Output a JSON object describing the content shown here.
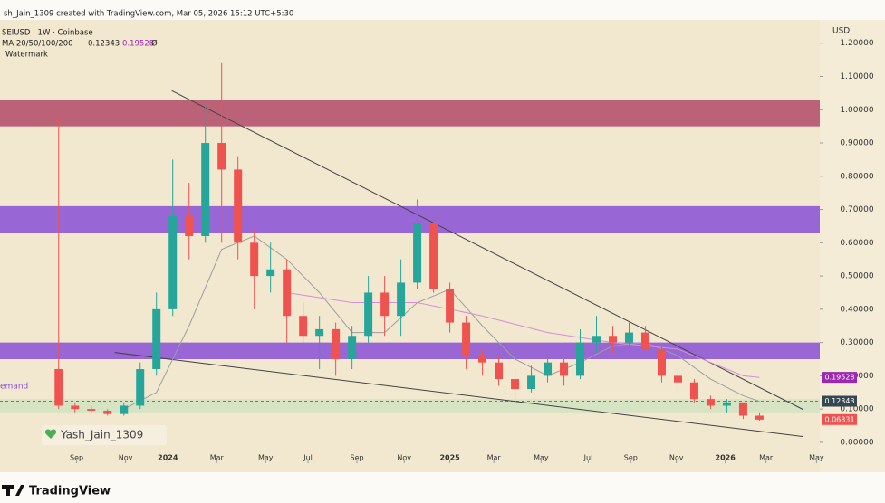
{
  "chart_data": {
    "type": "candlestick",
    "header": "sh_Jain_1309 created with TradingView.com, Mar 05, 2026 15:12 UTC+5:30",
    "symbol": "SEIUSD · 1W · Coinbase",
    "indicator": "MA 20/50/100/200",
    "indicator_values": [
      0.12343,
      0.19528
    ],
    "indicator_value_labels": [
      "0.12343",
      "0.19528"
    ],
    "indicator_suffix": "Ø",
    "watermark_label": "Watermark",
    "zone_label": "emand",
    "author": "Yash_Jain_1309",
    "brand": "TradingView",
    "currency": "USD",
    "up_color": "#26a69a",
    "down_color": "#ef5350",
    "categories": [
      null,
      null,
      null,
      null,
      null,
      null,
      null,
      null,
      null,
      null,
      null,
      null,
      null,
      null,
      null,
      null,
      null,
      null,
      null,
      null,
      null,
      null,
      null,
      null,
      null,
      null,
      null,
      null,
      null,
      null,
      null,
      null,
      null,
      null,
      null,
      null,
      null,
      null,
      null,
      null,
      null,
      null,
      null,
      null
    ],
    "candles": [
      [
        0.22,
        0.98,
        0.1,
        0.11
      ],
      [
        0.11,
        0.12,
        0.09,
        0.1
      ],
      [
        0.1,
        0.11,
        0.09,
        0.095
      ],
      [
        0.095,
        0.1,
        0.08,
        0.085
      ],
      [
        0.085,
        0.12,
        0.08,
        0.11
      ],
      [
        0.11,
        0.24,
        0.1,
        0.22
      ],
      [
        0.22,
        0.45,
        0.2,
        0.4
      ],
      [
        0.4,
        0.85,
        0.38,
        0.68
      ],
      [
        0.68,
        0.78,
        0.55,
        0.62
      ],
      [
        0.62,
        1.02,
        0.6,
        0.9
      ],
      [
        0.9,
        1.14,
        0.6,
        0.82
      ],
      [
        0.82,
        0.86,
        0.55,
        0.6
      ],
      [
        0.6,
        0.64,
        0.4,
        0.5
      ],
      [
        0.5,
        0.6,
        0.45,
        0.52
      ],
      [
        0.52,
        0.55,
        0.3,
        0.38
      ],
      [
        0.38,
        0.42,
        0.3,
        0.32
      ],
      [
        0.32,
        0.38,
        0.22,
        0.34
      ],
      [
        0.34,
        0.36,
        0.2,
        0.25
      ],
      [
        0.25,
        0.35,
        0.22,
        0.32
      ],
      [
        0.32,
        0.5,
        0.3,
        0.45
      ],
      [
        0.45,
        0.5,
        0.32,
        0.38
      ],
      [
        0.38,
        0.55,
        0.32,
        0.48
      ],
      [
        0.48,
        0.73,
        0.46,
        0.66
      ],
      [
        0.66,
        0.68,
        0.45,
        0.46
      ],
      [
        0.46,
        0.48,
        0.33,
        0.36
      ],
      [
        0.36,
        0.38,
        0.22,
        0.26
      ],
      [
        0.26,
        0.28,
        0.2,
        0.24
      ],
      [
        0.24,
        0.26,
        0.17,
        0.19
      ],
      [
        0.19,
        0.22,
        0.13,
        0.16
      ],
      [
        0.16,
        0.23,
        0.15,
        0.2
      ],
      [
        0.2,
        0.27,
        0.18,
        0.24
      ],
      [
        0.24,
        0.26,
        0.17,
        0.2
      ],
      [
        0.2,
        0.34,
        0.19,
        0.3
      ],
      [
        0.3,
        0.38,
        0.27,
        0.32
      ],
      [
        0.32,
        0.35,
        0.27,
        0.3
      ],
      [
        0.3,
        0.36,
        0.28,
        0.33
      ],
      [
        0.33,
        0.35,
        0.27,
        0.28
      ],
      [
        0.28,
        0.29,
        0.18,
        0.2
      ],
      [
        0.2,
        0.22,
        0.15,
        0.18
      ],
      [
        0.18,
        0.19,
        0.12,
        0.13
      ],
      [
        0.13,
        0.14,
        0.1,
        0.11
      ],
      [
        0.11,
        0.13,
        0.09,
        0.12
      ],
      [
        0.12,
        0.12,
        0.07,
        0.08
      ],
      [
        0.08,
        0.09,
        0.065,
        0.068
      ]
    ],
    "lines": [
      {
        "color": "#9e9e9e",
        "x": [
          4,
          6,
          8,
          10,
          12,
          14,
          16,
          18,
          20,
          22,
          24,
          26,
          28,
          30,
          32,
          34,
          36,
          38,
          40,
          42,
          43
        ],
        "values": [
          0.1,
          0.15,
          0.35,
          0.58,
          0.62,
          0.55,
          0.45,
          0.33,
          0.33,
          0.42,
          0.46,
          0.35,
          0.25,
          0.2,
          0.24,
          0.29,
          0.3,
          0.26,
          0.19,
          0.14,
          0.123
        ]
      },
      {
        "color": "#d48fd9",
        "x": [
          14,
          18,
          22,
          26,
          30,
          34,
          38,
          42,
          43
        ],
        "values": [
          0.45,
          0.42,
          0.42,
          0.38,
          0.33,
          0.3,
          0.28,
          0.2,
          0.195
        ]
      }
    ],
    "zones": [
      {
        "color": "#b24a6a",
        "values": [
          0.95,
          1.03
        ]
      },
      {
        "color": "#8a4fd6",
        "values": [
          0.63,
          0.71
        ]
      },
      {
        "color": "#8a4fd6",
        "values": [
          0.25,
          0.3
        ]
      },
      {
        "color": "#cfe3c0",
        "values": [
          0.09,
          0.13
        ]
      }
    ],
    "trendlines": [
      {
        "x": [
          6.94,
          45.7
        ],
        "values": [
          1.057,
          0.098
        ]
      },
      {
        "x": [
          3.44,
          45.7
        ],
        "values": [
          0.27,
          0.017
        ]
      }
    ],
    "price_labels": [
      {
        "value": 0.19528,
        "label": "0.19528",
        "color": "#9c27b0"
      },
      {
        "value": 0.12343,
        "label": "0.12343",
        "color": "#37474f"
      },
      {
        "value": 0.06831,
        "label": "0.06831",
        "color": "#ef5350"
      }
    ],
    "dashed_level": 0.12343,
    "xlim": [
      -3.6,
      46.7
    ],
    "ylim": [
      -0.09,
      1.27
    ],
    "yticks": [
      {
        "value": 0,
        "label": "0.00000"
      },
      {
        "value": 0.1,
        "label": "0.10000"
      },
      {
        "value": 0.2,
        "label": "0.20000"
      },
      {
        "value": 0.3,
        "label": "0.30000"
      },
      {
        "value": 0.4,
        "label": "0.40000"
      },
      {
        "value": 0.5,
        "label": "0.50000"
      },
      {
        "value": 0.6,
        "label": "0.60000"
      },
      {
        "value": 0.7,
        "label": "0.70000"
      },
      {
        "value": 0.8,
        "label": "0.80000"
      },
      {
        "value": 0.9,
        "label": "0.90000"
      },
      {
        "value": 1,
        "label": "1.00000"
      },
      {
        "value": 1.1,
        "label": "1.10000"
      },
      {
        "value": 1.2,
        "label": "1.20000"
      }
    ],
    "xticks": [
      {
        "value": 1.1,
        "label": "Sep"
      },
      {
        "value": 4.1,
        "label": "Nov"
      },
      {
        "value": 6.7,
        "label": "2024"
      },
      {
        "value": 9.7,
        "label": "Mar"
      },
      {
        "value": 12.7,
        "label": "May"
      },
      {
        "value": 15.3,
        "label": "Jul"
      },
      {
        "value": 18.3,
        "label": "Sep"
      },
      {
        "value": 21.2,
        "label": "Nov"
      },
      {
        "value": 24,
        "label": "2025"
      },
      {
        "value": 26.7,
        "label": "Mar"
      },
      {
        "value": 29.6,
        "label": "May"
      },
      {
        "value": 32.5,
        "label": "Jul"
      },
      {
        "value": 35.1,
        "label": "Sep"
      },
      {
        "value": 37.9,
        "label": "Nov"
      },
      {
        "value": 40.9,
        "label": "2026"
      },
      {
        "value": 43.4,
        "label": "Mar"
      },
      {
        "value": 46.5,
        "label": "May"
      }
    ]
  }
}
